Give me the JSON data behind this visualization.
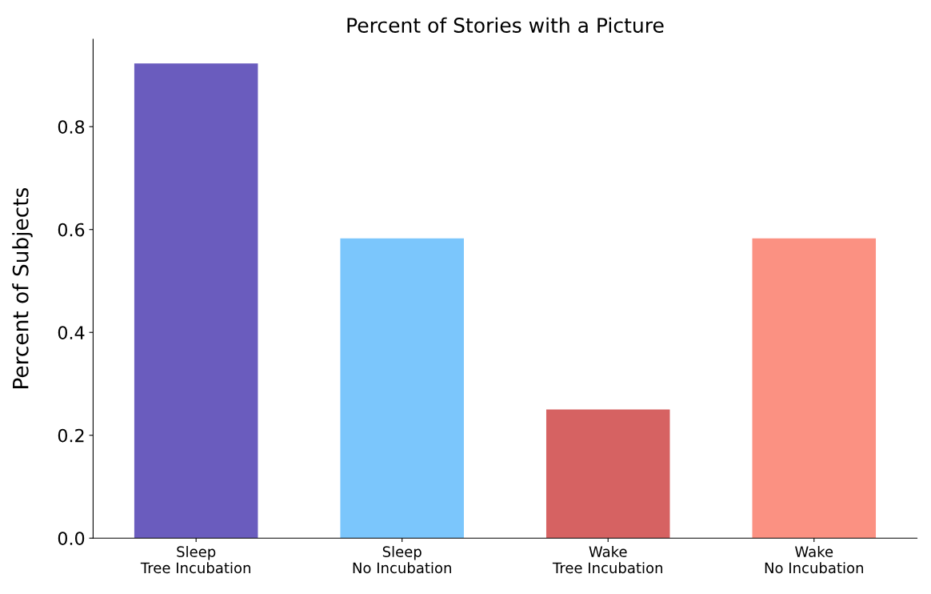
{
  "chart_data": {
    "type": "bar",
    "title": "Percent of Stories with a Picture",
    "ylabel": "Percent of Subjects",
    "categories": [
      "Sleep\nTree Incubation",
      "Sleep\nNo Incubation",
      "Wake\nTree Incubation",
      "Wake\nNo Incubation"
    ],
    "values": [
      0.923,
      0.583,
      0.25,
      0.583
    ],
    "colors": [
      "#6a5cbe",
      "#7bc6fc",
      "#d66262",
      "#fb9182"
    ],
    "ylim": [
      0,
      0.97
    ],
    "yticks": [
      {
        "value": 0,
        "label": "0.0"
      },
      0.2,
      0.4,
      0.6,
      0.8
    ],
    "grid": false
  }
}
